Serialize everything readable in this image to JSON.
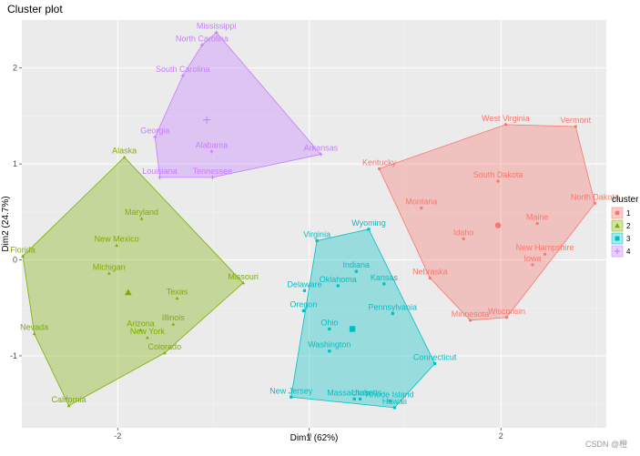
{
  "chart_data": {
    "type": "scatter",
    "title": "Cluster plot",
    "xlabel": "Dim1 (62%)",
    "ylabel": "Dim2 (24.7%)",
    "xlim": [
      -3.0,
      3.1
    ],
    "ylim": [
      -1.75,
      2.5
    ],
    "xticks": [
      -2,
      0,
      2
    ],
    "yticks": [
      -1,
      0,
      1,
      2
    ],
    "grid": true,
    "legend_title": "cluster",
    "legend_position": "right",
    "clusters": [
      {
        "id": "1",
        "color": "#F8766D",
        "marker": "circle",
        "center": [
          1.97,
          0.36
        ],
        "hull": [
          "Vermont",
          "North Dakota",
          "Wisconsin",
          "Minnesota",
          "Nebraska",
          "Kentucky",
          "West Virginia"
        ],
        "points": [
          {
            "label": "West Virginia",
            "x": 2.05,
            "y": 1.41
          },
          {
            "label": "Vermont",
            "x": 2.78,
            "y": 1.39
          },
          {
            "label": "Kentucky",
            "x": 0.73,
            "y": 0.95
          },
          {
            "label": "South Dakota",
            "x": 1.97,
            "y": 0.82
          },
          {
            "label": "North Dakota",
            "x": 2.98,
            "y": 0.59
          },
          {
            "label": "Montana",
            "x": 1.17,
            "y": 0.54
          },
          {
            "label": "Maine",
            "x": 2.38,
            "y": 0.38
          },
          {
            "label": "Idaho",
            "x": 1.61,
            "y": 0.22
          },
          {
            "label": "New Hampshire",
            "x": 2.46,
            "y": 0.06
          },
          {
            "label": "Iowa",
            "x": 2.33,
            "y": -0.05
          },
          {
            "label": "Nebraska",
            "x": 1.26,
            "y": -0.19
          },
          {
            "label": "Wisconsin",
            "x": 2.06,
            "y": -0.6
          },
          {
            "label": "Minnesota",
            "x": 1.68,
            "y": -0.63
          }
        ]
      },
      {
        "id": "2",
        "color": "#7CAE00",
        "marker": "triangle",
        "center": [
          -1.89,
          -0.34
        ],
        "hull": [
          "Alaska",
          "Missouri",
          "Colorado",
          "California",
          "Nevada",
          "Florida"
        ],
        "points": [
          {
            "label": "Alaska",
            "x": -1.93,
            "y": 1.07
          },
          {
            "label": "Maryland",
            "x": -1.75,
            "y": 0.43
          },
          {
            "label": "New Mexico",
            "x": -2.01,
            "y": 0.15
          },
          {
            "label": "Florida",
            "x": -2.99,
            "y": 0.04
          },
          {
            "label": "Michigan",
            "x": -2.09,
            "y": -0.14
          },
          {
            "label": "Missouri",
            "x": -0.69,
            "y": -0.24
          },
          {
            "label": "Texas",
            "x": -1.38,
            "y": -0.4
          },
          {
            "label": "Illinois",
            "x": -1.42,
            "y": -0.67
          },
          {
            "label": "Nevada",
            "x": -2.87,
            "y": -0.77
          },
          {
            "label": "Arizona",
            "x": -1.76,
            "y": -0.73
          },
          {
            "label": "New York",
            "x": -1.69,
            "y": -0.81
          },
          {
            "label": "Colorado",
            "x": -1.51,
            "y": -0.97
          },
          {
            "label": "California",
            "x": -2.51,
            "y": -1.52
          }
        ]
      },
      {
        "id": "3",
        "color": "#00BFC4",
        "marker": "square",
        "center": [
          0.45,
          -0.72
        ],
        "hull": [
          "Wyoming",
          "Connecticut",
          "Hawaii",
          "New Jersey",
          "Virginia"
        ],
        "points": [
          {
            "label": "Wyoming",
            "x": 0.62,
            "y": 0.32
          },
          {
            "label": "Virginia",
            "x": 0.08,
            "y": 0.2
          },
          {
            "label": "Indiana",
            "x": 0.49,
            "y": -0.12
          },
          {
            "label": "Oklahoma",
            "x": 0.3,
            "y": -0.27
          },
          {
            "label": "Kansas",
            "x": 0.78,
            "y": -0.25
          },
          {
            "label": "Delaware",
            "x": -0.05,
            "y": -0.32
          },
          {
            "label": "Oregon",
            "x": -0.06,
            "y": -0.53
          },
          {
            "label": "Pennsylvania",
            "x": 0.87,
            "y": -0.56
          },
          {
            "label": "Ohio",
            "x": 0.21,
            "y": -0.72
          },
          {
            "label": "Washington",
            "x": 0.21,
            "y": -0.95
          },
          {
            "label": "Connecticut",
            "x": 1.31,
            "y": -1.08
          },
          {
            "label": "New Jersey",
            "x": -0.19,
            "y": -1.43
          },
          {
            "label": "Massachusetts",
            "x": 0.47,
            "y": -1.45
          },
          {
            "label": "Utah",
            "x": 0.53,
            "y": -1.45
          },
          {
            "label": "Rhode Island",
            "x": 0.84,
            "y": -1.47
          },
          {
            "label": "Hawaii",
            "x": 0.89,
            "y": -1.54
          }
        ]
      },
      {
        "id": "4",
        "color": "#C77CFF",
        "marker": "plus",
        "center": [
          -1.07,
          1.46
        ],
        "hull": [
          "Mississippi",
          "Arkansas",
          "Tennessee",
          "Louisiana",
          "Georgia",
          "South Carolina",
          "North Carolina"
        ],
        "points": [
          {
            "label": "Mississippi",
            "x": -0.97,
            "y": 2.37
          },
          {
            "label": "North Carolina",
            "x": -1.12,
            "y": 2.24
          },
          {
            "label": "South Carolina",
            "x": -1.32,
            "y": 1.92
          },
          {
            "label": "Georgia",
            "x": -1.61,
            "y": 1.28
          },
          {
            "label": "Alabama",
            "x": -1.02,
            "y": 1.13
          },
          {
            "label": "Arkansas",
            "x": 0.12,
            "y": 1.1
          },
          {
            "label": "Louisiana",
            "x": -1.56,
            "y": 0.86
          },
          {
            "label": "Tennessee",
            "x": -1.01,
            "y": 0.86
          }
        ]
      }
    ]
  },
  "watermark": "CSDN @橙"
}
